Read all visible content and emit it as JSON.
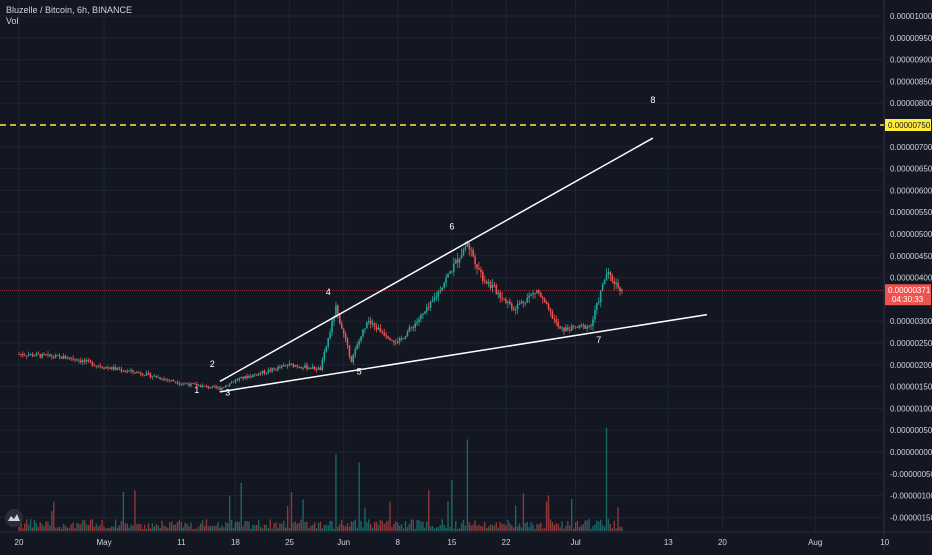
{
  "header": {
    "symbol_line": "Bluzelle / Bitcoin, 6h, BINANCE",
    "indicator": "Vol"
  },
  "colors": {
    "background": "#131722",
    "grid": "#1f2433",
    "up": "#26a69a",
    "down": "#ef5350",
    "trendline": "#ffffff",
    "target_line": "#ffeb3b",
    "current_price_line": "#ef5350"
  },
  "chart_data": {
    "type": "candlestick",
    "x_axis": {
      "tick_labels": [
        "20",
        "May",
        "11",
        "18",
        "25",
        "Jun",
        "8",
        "15",
        "22",
        "Jul",
        "13",
        "20",
        "Aug",
        "10"
      ]
    },
    "price_axis": {
      "tick_labels": [
        "0.00001000",
        "0.00000950",
        "0.00000900",
        "0.00000850",
        "0.00000800",
        "0.00000700",
        "0.00000650",
        "0.00000600",
        "0.00000550",
        "0.00000500",
        "0.00000450",
        "0.00000400",
        "0.00000300",
        "0.00000250",
        "0.00000200",
        "0.00000150",
        "0.00000100",
        "0.00000050",
        "0.00000000",
        "-0.00000050",
        "-0.00000100",
        "-0.00000150"
      ]
    },
    "horizontal_levels": [
      {
        "label": "0.00000750",
        "value": 7.5e-06,
        "style": "dashed",
        "color": "#ffeb3b"
      }
    ],
    "current_price": {
      "label": "0.00000371",
      "value": 3.71e-06,
      "countdown": "04:30:33"
    },
    "price_path": [
      {
        "date": "2020-04-20",
        "price": 2.25e-06
      },
      {
        "date": "2020-04-27",
        "price": 2.15e-06
      },
      {
        "date": "2020-05-01",
        "price": 1.95e-06
      },
      {
        "date": "2020-05-06",
        "price": 1.8e-06
      },
      {
        "date": "2020-05-11",
        "price": 1.58e-06
      },
      {
        "date": "2020-05-16",
        "price": 1.45e-06
      },
      {
        "date": "2020-05-18",
        "price": 1.65e-06
      },
      {
        "date": "2020-05-25",
        "price": 2e-06
      },
      {
        "date": "2020-05-29",
        "price": 1.9e-06
      },
      {
        "date": "2020-05-31",
        "price": 3.3e-06
      },
      {
        "date": "2020-06-02",
        "price": 2.1e-06
      },
      {
        "date": "2020-06-04",
        "price": 3e-06
      },
      {
        "date": "2020-06-08",
        "price": 2.5e-06
      },
      {
        "date": "2020-06-12",
        "price": 3.3e-06
      },
      {
        "date": "2020-06-14",
        "price": 3.9e-06
      },
      {
        "date": "2020-06-17",
        "price": 4.8e-06
      },
      {
        "date": "2020-06-19",
        "price": 4e-06
      },
      {
        "date": "2020-06-23",
        "price": 3.3e-06
      },
      {
        "date": "2020-06-26",
        "price": 3.7e-06
      },
      {
        "date": "2020-06-29",
        "price": 2.8e-06
      },
      {
        "date": "2020-07-03",
        "price": 2.9e-06
      },
      {
        "date": "2020-07-05",
        "price": 4.1e-06
      },
      {
        "date": "2020-07-07",
        "price": 3.71e-06
      }
    ],
    "trendlines": [
      {
        "from": {
          "date": "2020-05-16",
          "price": 1.62e-06
        },
        "to": {
          "date": "2020-07-11",
          "price": 7.2e-06
        }
      },
      {
        "from": {
          "date": "2020-05-16",
          "price": 1.38e-06
        },
        "to": {
          "date": "2020-07-18",
          "price": 3.15e-06
        }
      }
    ],
    "wave_labels": [
      {
        "text": "1",
        "date": "2020-05-13",
        "price": 1.35e-06
      },
      {
        "text": "2",
        "date": "2020-05-15",
        "price": 1.95e-06
      },
      {
        "text": "3",
        "date": "2020-05-17",
        "price": 1.3e-06
      },
      {
        "text": "4",
        "date": "2020-05-30",
        "price": 3.6e-06
      },
      {
        "text": "5",
        "date": "2020-06-03",
        "price": 1.78e-06
      },
      {
        "text": "6",
        "date": "2020-06-15",
        "price": 5.1e-06
      },
      {
        "text": "7",
        "date": "2020-07-04",
        "price": 2.5e-06
      },
      {
        "text": "8",
        "date": "2020-07-11",
        "price": 8e-06
      }
    ]
  }
}
